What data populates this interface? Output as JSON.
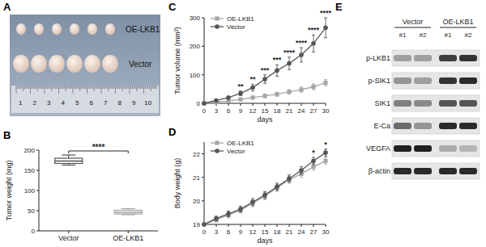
{
  "figure": {
    "panel_labels": [
      "A",
      "B",
      "C",
      "D",
      "E"
    ]
  },
  "photo": {
    "labels": [
      "OE-LKB1",
      "Vector"
    ],
    "ruler_labels": [
      "1",
      "2",
      "3",
      "4",
      "5",
      "6",
      "7",
      "8",
      "9",
      "10"
    ]
  },
  "chart_data": [
    {
      "type": "box",
      "ylabel": "Tumor weight (mg)",
      "categories": [
        "Vector",
        "OE-LKB1"
      ],
      "boxes": [
        {
          "min": 163,
          "q1": 167,
          "median": 173,
          "q3": 180,
          "max": 188
        },
        {
          "min": 40,
          "q1": 42,
          "median": 46,
          "q3": 51,
          "max": 55
        }
      ],
      "colors": [
        "#555555",
        "#a6a6a6"
      ],
      "ylim": [
        0,
        200
      ],
      "yticks": [
        0,
        50,
        100,
        150,
        200
      ],
      "annotations": [
        {
          "label": "****"
        }
      ]
    },
    {
      "type": "line",
      "ylabel": "Tumor volume (mm³)",
      "xlabel": "days",
      "x": [
        0,
        3,
        6,
        9,
        12,
        15,
        18,
        21,
        24,
        27,
        30
      ],
      "series": [
        {
          "name": "OE-LKB1",
          "color": "#a6a6a6",
          "marker": "square",
          "values": [
            0,
            5,
            8,
            14,
            20,
            26,
            32,
            40,
            48,
            58,
            72
          ],
          "errors": [
            0,
            2,
            3,
            4,
            5,
            6,
            7,
            8,
            9,
            10,
            11
          ]
        },
        {
          "name": "Vector",
          "color": "#555555",
          "marker": "circle",
          "values": [
            0,
            10,
            20,
            35,
            55,
            85,
            115,
            140,
            170,
            210,
            265
          ],
          "errors": [
            0,
            3,
            5,
            8,
            12,
            15,
            20,
            22,
            25,
            30,
            35
          ]
        }
      ],
      "xlim": [
        0,
        30
      ],
      "xticks": [
        0,
        3,
        6,
        9,
        12,
        15,
        18,
        21,
        24,
        27,
        30
      ],
      "ylim": [
        0,
        300
      ],
      "yticks": [
        0,
        100,
        200,
        300
      ],
      "legend": "upper left",
      "annotations": [
        {
          "x": 9,
          "label": "**"
        },
        {
          "x": 12,
          "label": "**"
        },
        {
          "x": 15,
          "label": "***"
        },
        {
          "x": 18,
          "label": "***"
        },
        {
          "x": 21,
          "label": "****"
        },
        {
          "x": 24,
          "label": "****"
        },
        {
          "x": 27,
          "label": "****"
        },
        {
          "x": 30,
          "label": "****"
        }
      ]
    },
    {
      "type": "line",
      "ylabel": "Body weight (g)",
      "xlabel": "days",
      "x": [
        0,
        3,
        6,
        9,
        12,
        15,
        18,
        21,
        24,
        27,
        30
      ],
      "series": [
        {
          "name": "OE-LKB1",
          "color": "#a6a6a6",
          "marker": "square",
          "values": [
            19,
            19.2,
            19.4,
            19.6,
            19.9,
            20.2,
            20.55,
            20.9,
            21.15,
            21.45,
            21.7
          ],
          "errors": [
            0,
            0.1,
            0.12,
            0.12,
            0.15,
            0.15,
            0.15,
            0.15,
            0.15,
            0.15,
            0.15
          ]
        },
        {
          "name": "Vector",
          "color": "#555555",
          "marker": "circle",
          "values": [
            19,
            19.25,
            19.45,
            19.65,
            19.95,
            20.25,
            20.6,
            20.95,
            21.3,
            21.7,
            22.05
          ],
          "errors": [
            0,
            0.1,
            0.12,
            0.12,
            0.15,
            0.15,
            0.15,
            0.15,
            0.15,
            0.15,
            0.15
          ]
        }
      ],
      "xlim": [
        0,
        30
      ],
      "xticks": [
        0,
        3,
        6,
        9,
        12,
        15,
        18,
        21,
        24,
        27,
        30
      ],
      "ylim": [
        19,
        22.5
      ],
      "yticks": [
        19,
        20,
        21,
        22
      ],
      "legend": "upper left",
      "annotations": [
        {
          "x": 27,
          "label": "*"
        },
        {
          "x": 30,
          "label": "*"
        }
      ]
    }
  ],
  "blot": {
    "groups": [
      "Vector",
      "OE-LKB1"
    ],
    "lanes": [
      "#1",
      "#2",
      "#1",
      "#2"
    ],
    "rows": [
      {
        "label": "p-LKB1",
        "intensity": [
          0.35,
          0.35,
          0.8,
          0.85
        ]
      },
      {
        "label": "p-SIK1",
        "intensity": [
          0.4,
          0.35,
          0.85,
          0.9
        ]
      },
      {
        "label": "SIK1",
        "intensity": [
          0.5,
          0.45,
          0.7,
          0.7
        ]
      },
      {
        "label": "E-Ca",
        "intensity": [
          0.6,
          0.4,
          0.9,
          0.9
        ]
      },
      {
        "label": "VEGFA",
        "intensity": [
          0.95,
          0.95,
          0.3,
          0.25
        ]
      },
      {
        "label": "β-actin",
        "intensity": [
          0.9,
          0.9,
          0.9,
          0.9
        ]
      }
    ]
  }
}
